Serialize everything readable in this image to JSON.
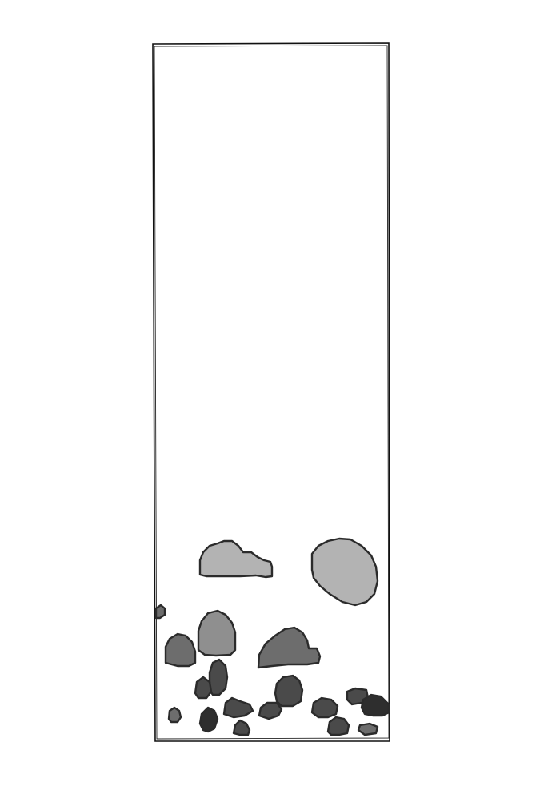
{
  "scene": {
    "background_color": "#ffffff",
    "frame_color": "#111111",
    "palette": {
      "light": "#b3b3b3",
      "mid": "#8f8f8f",
      "dark": "#6d6d6d",
      "darker": "#4a4a4a",
      "black": "#2e2e2e"
    },
    "icons": [
      "cloud-icon",
      "bush-icon",
      "rock-icon"
    ]
  }
}
